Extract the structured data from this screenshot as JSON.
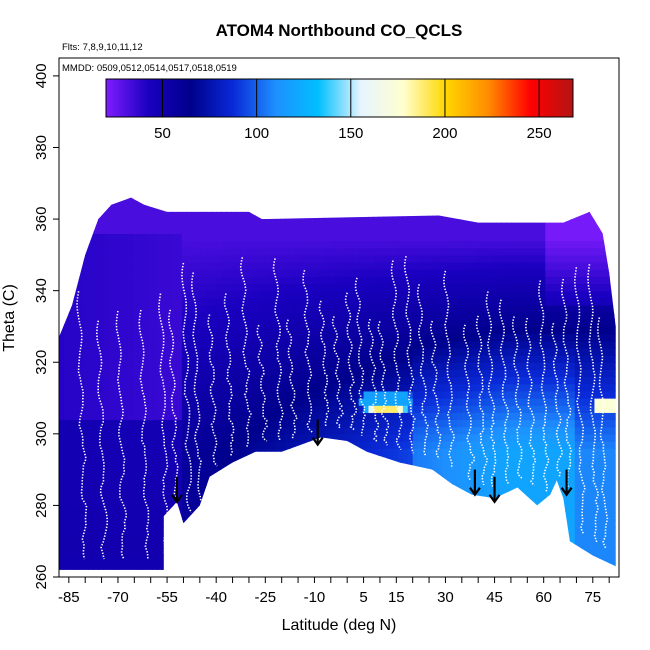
{
  "chart_data": {
    "type": "heatmap",
    "title": "ATOM4 Northbound CO_QCLS",
    "flights_note": "Flts: 7,8,9,10,11,12",
    "dates_note": "MMDD: 0509,0512,0514,0517,0518,0519",
    "xlabel": "Latitude (deg N)",
    "ylabel": "Theta (C)",
    "xlim": [
      -88,
      83
    ],
    "ylim": [
      260,
      405
    ],
    "x_ticks": [
      -85,
      -70,
      -55,
      -40,
      -25,
      -10,
      5,
      15,
      30,
      45,
      60,
      75
    ],
    "y_ticks": [
      260,
      280,
      300,
      320,
      340,
      360,
      380,
      400
    ],
    "colorbar": {
      "min": 20,
      "max": 268,
      "ticks": [
        50,
        100,
        150,
        200,
        250
      ],
      "colors": [
        "#7f1dff",
        "#1a00c0",
        "#00008c",
        "#0a2ad8",
        "#1e90ff",
        "#00bfff",
        "#e6f4ff",
        "#ffffd0",
        "#ffd700",
        "#ff8c00",
        "#ff0000",
        "#b41414"
      ]
    },
    "lower_boundary": [
      {
        "lat": -88,
        "theta": 262
      },
      {
        "lat": -68,
        "theta": 262
      },
      {
        "lat": -56,
        "theta": 262
      },
      {
        "lat": -56,
        "theta": 277
      },
      {
        "lat": -52,
        "theta": 281
      },
      {
        "lat": -50,
        "theta": 275
      },
      {
        "lat": -45,
        "theta": 280
      },
      {
        "lat": -42,
        "theta": 288
      },
      {
        "lat": -35,
        "theta": 292
      },
      {
        "lat": -28,
        "theta": 295
      },
      {
        "lat": -20,
        "theta": 295
      },
      {
        "lat": -14,
        "theta": 297
      },
      {
        "lat": -8,
        "theta": 299
      },
      {
        "lat": 0,
        "theta": 298
      },
      {
        "lat": 6,
        "theta": 295
      },
      {
        "lat": 16,
        "theta": 292
      },
      {
        "lat": 26,
        "theta": 290
      },
      {
        "lat": 32,
        "theta": 286
      },
      {
        "lat": 38,
        "theta": 283
      },
      {
        "lat": 45,
        "theta": 282
      },
      {
        "lat": 52,
        "theta": 285
      },
      {
        "lat": 58,
        "theta": 280
      },
      {
        "lat": 62,
        "theta": 283
      },
      {
        "lat": 64,
        "theta": 287
      },
      {
        "lat": 66,
        "theta": 282
      },
      {
        "lat": 68,
        "theta": 270
      },
      {
        "lat": 75,
        "theta": 266
      },
      {
        "lat": 82,
        "theta": 263
      }
    ],
    "upper_boundary": [
      {
        "lat": -88,
        "theta": 327
      },
      {
        "lat": -84,
        "theta": 336
      },
      {
        "lat": -80,
        "theta": 350
      },
      {
        "lat": -76,
        "theta": 360
      },
      {
        "lat": -72,
        "theta": 364
      },
      {
        "lat": -66,
        "theta": 366
      },
      {
        "lat": -62,
        "theta": 364
      },
      {
        "lat": -55,
        "theta": 362
      },
      {
        "lat": -30,
        "theta": 362
      },
      {
        "lat": -26,
        "theta": 360
      },
      {
        "lat": 28,
        "theta": 361
      },
      {
        "lat": 40,
        "theta": 359
      },
      {
        "lat": 66,
        "theta": 359
      },
      {
        "lat": 74,
        "theta": 362
      },
      {
        "lat": 78,
        "theta": 356
      },
      {
        "lat": 80,
        "theta": 345
      },
      {
        "lat": 82,
        "theta": 330
      }
    ],
    "arrows": [
      {
        "lat": -52,
        "theta_top": 288,
        "theta_tip": 281
      },
      {
        "lat": -9,
        "theta_top": 304,
        "theta_tip": 297
      },
      {
        "lat": 39,
        "theta_top": 290,
        "theta_tip": 283
      },
      {
        "lat": 45,
        "theta_top": 288,
        "theta_tip": 281
      },
      {
        "lat": 67,
        "theta_top": 290,
        "theta_tip": 283
      }
    ],
    "hotspot": {
      "lat_min": 4,
      "lat_max": 20,
      "theta_min": 306,
      "theta_max": 311,
      "value_peak": 230
    }
  }
}
